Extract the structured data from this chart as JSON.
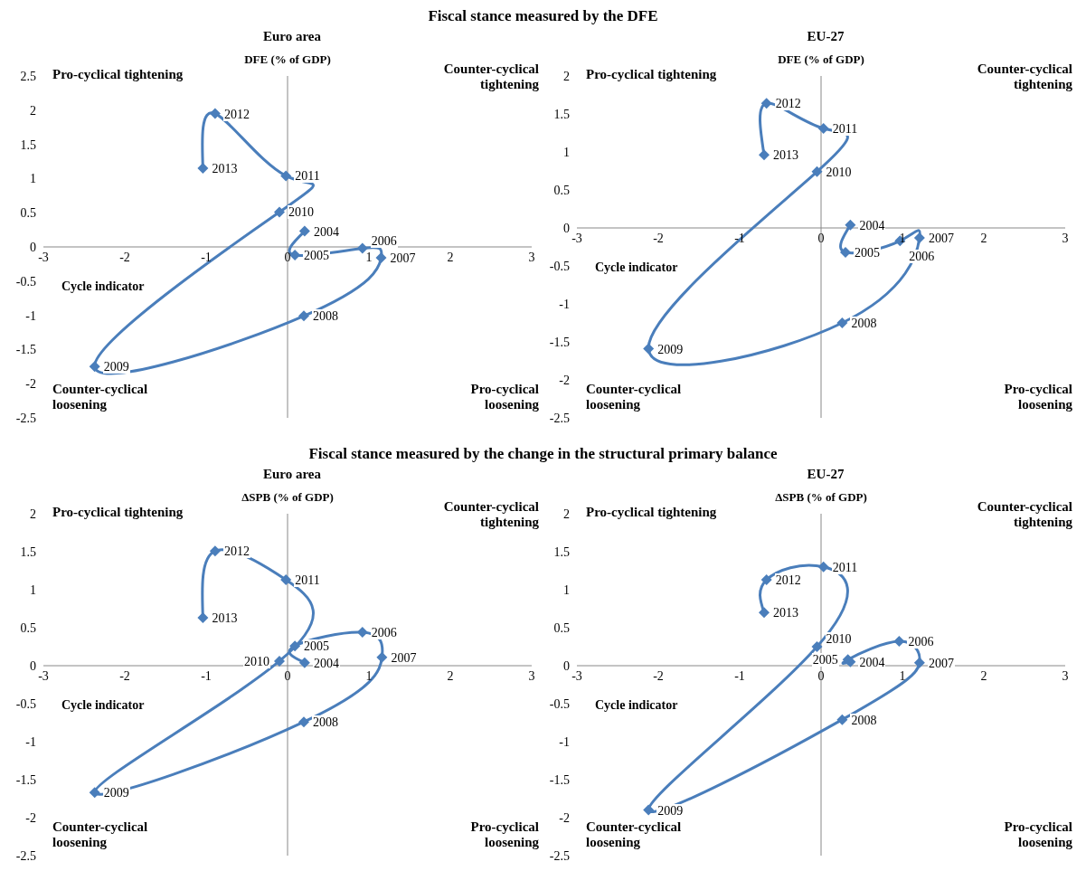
{
  "chart_data": [
    {
      "type": "line",
      "title": "Fiscal stance measured by the DFE",
      "subtitle": "Euro area",
      "xlabel": "Cycle indicator",
      "ylabel": "DFE (% of GDP)",
      "color": "#4a7ebb",
      "marker": "diamond",
      "xlim": [
        -3,
        3
      ],
      "xticks": [
        -3,
        -2,
        -1,
        0,
        1,
        2,
        3
      ],
      "ylim": [
        -2.5,
        2.5
      ],
      "yticks": [
        -2.5,
        -2,
        -1.5,
        -1,
        -0.5,
        0,
        0.5,
        1,
        1.5,
        2,
        2.5
      ],
      "x": [
        0.21,
        0.09,
        0.92,
        1.15,
        0.2,
        -2.37,
        -0.1,
        -0.02,
        -0.89,
        -1.04
      ],
      "values": [
        0.23,
        -0.12,
        -0.02,
        -0.16,
        -1.01,
        -1.75,
        0.51,
        1.04,
        1.95,
        1.15
      ],
      "annotations": [
        "Pro-cyclical tightening",
        "Counter-cyclical tightening",
        "Counter-cyclical loosening",
        "Pro-cyclical loosening",
        {
          "text": "2004",
          "x": 0.21,
          "y": 0.23
        },
        {
          "text": "2005",
          "x": 0.09,
          "y": -0.12
        },
        {
          "text": "2006",
          "x": 0.92,
          "y": -0.02
        },
        {
          "text": "2007",
          "x": 1.15,
          "y": -0.16
        },
        {
          "text": "2008",
          "x": 0.2,
          "y": -1.01
        },
        {
          "text": "2009",
          "x": -2.37,
          "y": -1.75
        },
        {
          "text": "2010",
          "x": -0.1,
          "y": 0.51
        },
        {
          "text": "2011",
          "x": -0.02,
          "y": 1.04
        },
        {
          "text": "2012",
          "x": -0.89,
          "y": 1.95
        },
        {
          "text": "2013",
          "x": -1.04,
          "y": 1.15
        }
      ]
    },
    {
      "type": "line",
      "subtitle": "EU-27",
      "xlabel": "Cycle indicator",
      "ylabel": "DFE (% of GDP)",
      "color": "#4a7ebb",
      "marker": "diamond",
      "xlim": [
        -3,
        3
      ],
      "xticks": [
        -3,
        -2,
        -1,
        0,
        1,
        2,
        3
      ],
      "ylim": [
        -2.5,
        2
      ],
      "yticks": [
        -2.5,
        -2,
        -1.5,
        -1,
        -0.5,
        0,
        0.5,
        1,
        1.5,
        2
      ],
      "x": [
        0.36,
        0.3,
        0.97,
        1.21,
        0.26,
        -2.12,
        -0.05,
        0.03,
        -0.67,
        -0.7
      ],
      "values": [
        0.04,
        -0.32,
        -0.17,
        -0.13,
        -1.25,
        -1.59,
        0.74,
        1.31,
        1.64,
        0.96
      ],
      "annotations": [
        "Pro-cyclical tightening",
        "Counter-cyclical tightening",
        "Counter-cyclical loosening",
        "Pro-cyclical loosening",
        {
          "text": "2004",
          "x": 0.36,
          "y": 0.04
        },
        {
          "text": "2005",
          "x": 0.3,
          "y": -0.32
        },
        {
          "text": "2006",
          "x": 0.97,
          "y": -0.17
        },
        {
          "text": "2007",
          "x": 1.21,
          "y": -0.13
        },
        {
          "text": "2008",
          "x": 0.26,
          "y": -1.25
        },
        {
          "text": "2009",
          "x": -2.12,
          "y": -1.59
        },
        {
          "text": "2010",
          "x": -0.05,
          "y": 0.74
        },
        {
          "text": "2011",
          "x": 0.03,
          "y": 1.31
        },
        {
          "text": "2012",
          "x": -0.67,
          "y": 1.64
        },
        {
          "text": "2013",
          "x": -0.7,
          "y": 0.96
        }
      ]
    },
    {
      "type": "line",
      "title": "Fiscal stance measured by the change in the structural primary balance",
      "subtitle": "Euro area",
      "xlabel": "Cycle indicator",
      "ylabel": "ΔSPB (% of GDP)",
      "color": "#4a7ebb",
      "marker": "diamond",
      "xlim": [
        -3,
        3
      ],
      "xticks": [
        -3,
        -2,
        -1,
        0,
        1,
        2,
        3
      ],
      "ylim": [
        -2.5,
        2
      ],
      "yticks": [
        -2.5,
        -2,
        -1.5,
        -1,
        -0.5,
        0,
        0.5,
        1,
        1.5,
        2
      ],
      "x": [
        0.21,
        0.09,
        0.92,
        1.16,
        0.2,
        -2.37,
        -0.1,
        -0.02,
        -0.89,
        -1.04
      ],
      "values": [
        0.04,
        0.26,
        0.44,
        0.11,
        -0.74,
        -1.67,
        0.06,
        1.13,
        1.51,
        0.63
      ],
      "annotations": [
        "Pro-cyclical tightening",
        "Counter-cyclical tightening",
        "Counter-cyclical loosening",
        "Pro-cyclical loosening",
        {
          "text": "2004",
          "x": 0.21,
          "y": 0.04
        },
        {
          "text": "2005",
          "x": 0.09,
          "y": 0.26
        },
        {
          "text": "2006",
          "x": 0.92,
          "y": 0.44
        },
        {
          "text": "2007",
          "x": 1.16,
          "y": 0.11
        },
        {
          "text": "2008",
          "x": 0.2,
          "y": -0.74
        },
        {
          "text": "2009",
          "x": -2.37,
          "y": -1.67
        },
        {
          "text": "2010",
          "x": -0.1,
          "y": 0.06
        },
        {
          "text": "2011",
          "x": -0.02,
          "y": 1.13
        },
        {
          "text": "2012",
          "x": -0.89,
          "y": 1.51
        },
        {
          "text": "2013",
          "x": -1.04,
          "y": 0.63
        }
      ]
    },
    {
      "type": "line",
      "subtitle": "EU-27",
      "xlabel": "Cycle indicator",
      "ylabel": "ΔSPB (% of GDP)",
      "color": "#4a7ebb",
      "marker": "diamond",
      "xlim": [
        -3,
        3
      ],
      "xticks": [
        -3,
        -2,
        -1,
        0,
        1,
        2,
        3
      ],
      "ylim": [
        -2.5,
        2
      ],
      "yticks": [
        -2.5,
        -2,
        -1.5,
        -1,
        -0.5,
        0,
        0.5,
        1,
        1.5,
        2
      ],
      "x": [
        0.36,
        0.33,
        0.96,
        1.21,
        0.26,
        -2.12,
        -0.05,
        0.03,
        -0.67,
        -0.7
      ],
      "values": [
        0.05,
        0.08,
        0.32,
        0.04,
        -0.71,
        -1.9,
        0.25,
        1.3,
        1.13,
        0.7
      ],
      "annotations": [
        "Pro-cyclical tightening",
        "Counter-cyclical tightening",
        "Counter-cyclical loosening",
        "Pro-cyclical loosening",
        {
          "text": "2004",
          "x": 0.36,
          "y": 0.05
        },
        {
          "text": "2005",
          "x": 0.33,
          "y": 0.08
        },
        {
          "text": "2006",
          "x": 0.96,
          "y": 0.32
        },
        {
          "text": "2007",
          "x": 1.21,
          "y": 0.04
        },
        {
          "text": "2008",
          "x": 0.26,
          "y": -0.71
        },
        {
          "text": "2009",
          "x": -2.12,
          "y": -1.9
        },
        {
          "text": "2010",
          "x": -0.05,
          "y": 0.25
        },
        {
          "text": "2011",
          "x": 0.03,
          "y": 1.3
        },
        {
          "text": "2012",
          "x": -0.67,
          "y": 1.13
        },
        {
          "text": "2013",
          "x": -0.7,
          "y": 0.7
        }
      ]
    }
  ]
}
